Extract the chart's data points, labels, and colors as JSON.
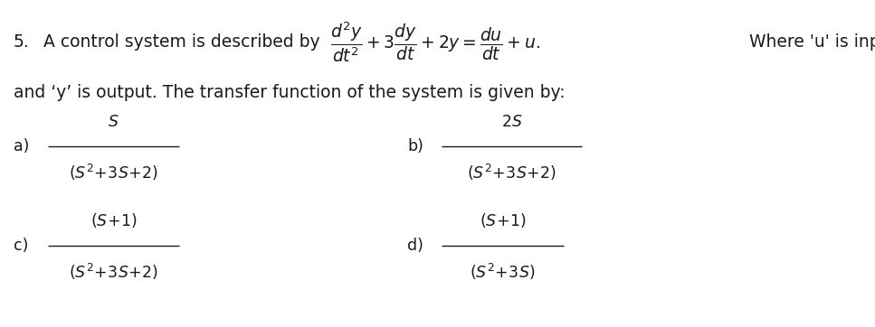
{
  "bg_color": "#ffffff",
  "text_color": "#1a1a1a",
  "fig_width": 9.67,
  "fig_height": 3.62,
  "dpi": 100,
  "fontsize_body": 13.5,
  "fontsize_eq": 13.0,
  "fontsize_option": 12.5,
  "line1_num": "5.",
  "line1_text": " A control system is described by ",
  "line2_text": "and ‘y’ is output. The transfer function of the system is given by:",
  "eq_main": "$\\dfrac{d^2y}{dt^2} + 3\\dfrac{dy}{dt} + 2y = \\dfrac{du}{dt} + u.$ Where ‘u’ is input",
  "opt_a_label": "a)",
  "opt_a_num": "$S$",
  "opt_a_den": "$(S^2\\!+\\!3S\\!+\\!2)$",
  "opt_b_label": "b)",
  "opt_b_num": "$2S$",
  "opt_b_den": "$(S^2\\!+\\!3S\\!+\\!2)$",
  "opt_c_label": "c)",
  "opt_c_num": "$(S\\!+\\!1)$",
  "opt_c_den": "$(S^2\\!+\\!3S\\!+\\!2)$",
  "opt_d_label": "d)",
  "opt_d_num": "$(S\\!+\\!1)$",
  "opt_d_den": "$(S^2\\!+\\!3S)$"
}
